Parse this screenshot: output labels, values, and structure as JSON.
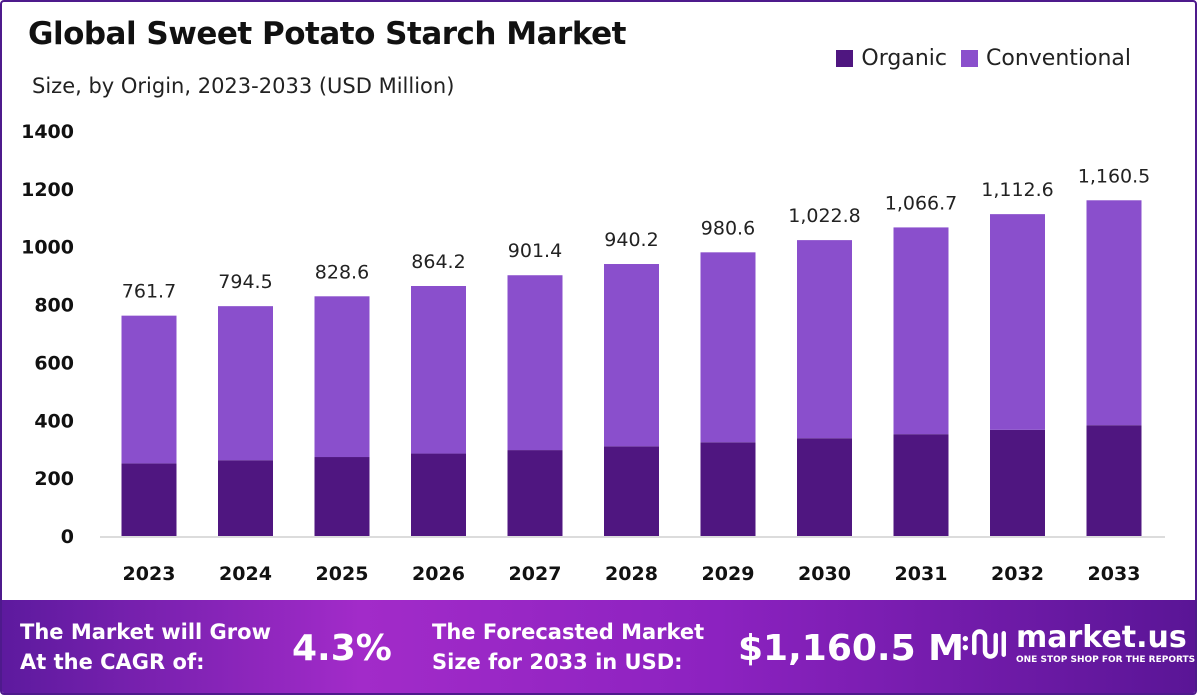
{
  "chart_data": {
    "type": "bar",
    "stacked": true,
    "title": "Global Sweet Potato Starch Market",
    "subtitle": "Size, by Origin, 2023-2033 (USD Million)",
    "xlabel": "",
    "ylabel": "",
    "ylim": [
      0,
      1400
    ],
    "yticks": [
      0,
      200,
      400,
      600,
      800,
      1000,
      1200,
      1400
    ],
    "legend_position": "top-right",
    "grid": false,
    "categories": [
      "2023",
      "2024",
      "2025",
      "2026",
      "2027",
      "2028",
      "2029",
      "2030",
      "2031",
      "2032",
      "2033"
    ],
    "series": [
      {
        "name": "Organic",
        "color": "#4f1680",
        "values": [
          251,
          262,
          273,
          285,
          297,
          310,
          324,
          338,
          352,
          367,
          383
        ]
      },
      {
        "name": "Conventional",
        "color": "#8a4fcc",
        "values": [
          510.7,
          532.5,
          555.6,
          579.2,
          604.4,
          630.2,
          656.6,
          684.8,
          714.7,
          745.6,
          777.5
        ]
      }
    ],
    "totals": [
      761.7,
      794.5,
      828.6,
      864.2,
      901.4,
      940.2,
      980.6,
      1022.8,
      1066.7,
      1112.6,
      1160.5
    ],
    "total_labels": [
      "761.7",
      "794.5",
      "828.6",
      "864.2",
      "901.4",
      "940.2",
      "980.6",
      "1,022.8",
      "1,066.7",
      "1,112.6",
      "1,160.5"
    ]
  },
  "footer": {
    "cagr_text_line1": "The Market will Grow",
    "cagr_text_line2": "At the CAGR of:",
    "cagr_value": "4.3%",
    "forecast_text_line1": "The Forecasted Market",
    "forecast_text_line2": "Size for 2033 in USD:",
    "forecast_value": "$1,160.5 M",
    "logo_name": "market.us",
    "logo_tagline": "ONE STOP SHOP FOR THE REPORTS"
  }
}
